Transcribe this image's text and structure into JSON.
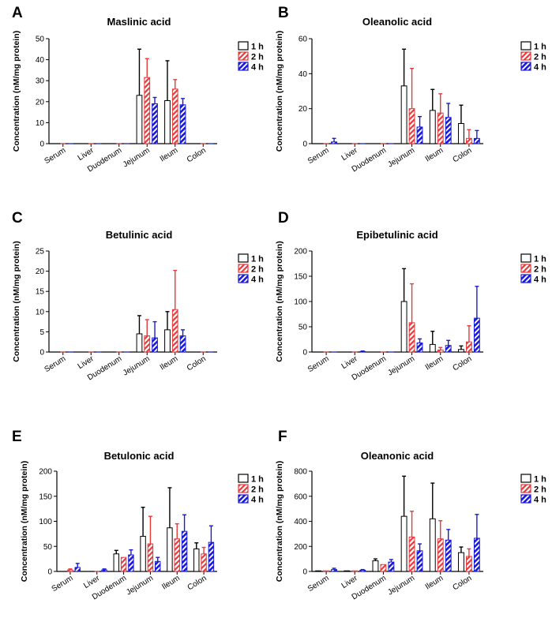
{
  "colors": {
    "h1": "#000000",
    "h2": "#e8393b",
    "h4": "#1a1ad6"
  },
  "legend": [
    "1 h",
    "2 h",
    "4 h"
  ],
  "ylabel": "Concentration (nM/mg protein)",
  "chart_data": [
    {
      "label": "A",
      "title": "Maslinic acid",
      "type": "bar",
      "categories": [
        "Serum",
        "Liver",
        "Duodenum",
        "Jejunum",
        "Ileum",
        "Colon"
      ],
      "yticks": [
        0,
        10,
        20,
        30,
        40,
        50
      ],
      "ylim": [
        0,
        50
      ],
      "series": [
        {
          "name": "1 h",
          "values": [
            0,
            0,
            0,
            23,
            20.5,
            0
          ],
          "errors": [
            0,
            0,
            0,
            22,
            19,
            0
          ]
        },
        {
          "name": "2 h",
          "values": [
            0,
            0,
            0,
            31.5,
            26,
            0
          ],
          "errors": [
            0,
            0,
            0,
            9,
            4.5,
            0
          ]
        },
        {
          "name": "4 h",
          "values": [
            0,
            0,
            0,
            19,
            18.5,
            0
          ],
          "errors": [
            0,
            0,
            0,
            3,
            3,
            0
          ]
        }
      ]
    },
    {
      "label": "B",
      "title": "Oleanolic acid",
      "type": "bar",
      "categories": [
        "Serum",
        "Liver",
        "Duodenum",
        "Jejunum",
        "Ileum",
        "Colon"
      ],
      "yticks": [
        0,
        20,
        40,
        60
      ],
      "ylim": [
        0,
        60
      ],
      "series": [
        {
          "name": "1 h",
          "values": [
            0,
            0,
            0,
            33,
            19,
            11.5
          ],
          "errors": [
            0,
            0,
            0,
            21,
            12,
            10.5
          ]
        },
        {
          "name": "2 h",
          "values": [
            0,
            0,
            0,
            20,
            17.5,
            3
          ],
          "errors": [
            0,
            0,
            0,
            23,
            11,
            5
          ]
        },
        {
          "name": "4 h",
          "values": [
            1,
            0,
            0,
            9.5,
            15,
            3
          ],
          "errors": [
            2,
            0,
            0,
            6,
            8,
            4.5
          ]
        }
      ]
    },
    {
      "label": "C",
      "title": "Betulinic acid",
      "type": "bar",
      "categories": [
        "Serum",
        "Liver",
        "Duodenum",
        "Jejunum",
        "Ileum",
        "Colon"
      ],
      "yticks": [
        0,
        5,
        10,
        15,
        20,
        25
      ],
      "ylim": [
        0,
        25
      ],
      "series": [
        {
          "name": "1 h",
          "values": [
            0,
            0,
            0,
            4.5,
            5.5,
            0
          ],
          "errors": [
            0,
            0,
            0,
            4.5,
            4.5,
            0
          ]
        },
        {
          "name": "2 h",
          "values": [
            0,
            0,
            0,
            4,
            10.5,
            0
          ],
          "errors": [
            0,
            0,
            0,
            4,
            9.7,
            0
          ]
        },
        {
          "name": "4 h",
          "values": [
            0,
            0,
            0,
            3.5,
            4,
            0
          ],
          "errors": [
            0,
            0,
            0,
            4,
            1.5,
            0
          ]
        }
      ]
    },
    {
      "label": "D",
      "title": "Epibetulinic acid",
      "type": "bar",
      "categories": [
        "Serum",
        "Liver",
        "Duodenum",
        "Jejunum",
        "Ileum",
        "Colon"
      ],
      "yticks": [
        0,
        50,
        100,
        150,
        200
      ],
      "ylim": [
        0,
        200
      ],
      "series": [
        {
          "name": "1 h",
          "values": [
            0,
            0,
            0,
            100,
            15,
            5
          ],
          "errors": [
            0,
            0,
            0,
            65,
            26,
            7
          ]
        },
        {
          "name": "2 h",
          "values": [
            0,
            0,
            0,
            58,
            4,
            20
          ],
          "errors": [
            0,
            0,
            0,
            77,
            5,
            32
          ]
        },
        {
          "name": "4 h",
          "values": [
            0,
            1,
            0,
            18,
            13,
            67
          ],
          "errors": [
            0,
            1,
            0,
            8,
            10,
            63
          ]
        }
      ]
    },
    {
      "label": "E",
      "title": "Betulonic acid",
      "type": "bar",
      "categories": [
        "Serum",
        "Liver",
        "Duodenum",
        "Jejunum",
        "Ileum",
        "Colon"
      ],
      "yticks": [
        0,
        50,
        100,
        150,
        200
      ],
      "ylim": [
        0,
        200
      ],
      "series": [
        {
          "name": "1 h",
          "values": [
            0,
            0,
            35,
            70,
            87,
            45
          ],
          "errors": [
            0,
            0,
            7,
            58,
            80,
            12
          ]
        },
        {
          "name": "2 h",
          "values": [
            3,
            0,
            28,
            55,
            65,
            35
          ],
          "errors": [
            2,
            0,
            0,
            55,
            30,
            13
          ]
        },
        {
          "name": "4 h",
          "values": [
            8,
            3,
            33,
            20,
            80,
            58
          ],
          "errors": [
            8,
            2,
            10,
            8,
            33,
            33
          ]
        }
      ]
    },
    {
      "label": "F",
      "title": "Oleanonic acid",
      "type": "bar",
      "categories": [
        "Serum",
        "Liver",
        "Duodenum",
        "Jejunum",
        "Ileum",
        "Colon"
      ],
      "yticks": [
        0,
        200,
        400,
        600,
        800
      ],
      "ylim": [
        0,
        800
      ],
      "series": [
        {
          "name": "1 h",
          "values": [
            5,
            5,
            85,
            440,
            420,
            150
          ],
          "errors": [
            0,
            0,
            15,
            320,
            285,
            45
          ]
        },
        {
          "name": "2 h",
          "values": [
            5,
            5,
            55,
            275,
            260,
            120
          ],
          "errors": [
            0,
            0,
            0,
            205,
            145,
            60
          ]
        },
        {
          "name": "4 h",
          "values": [
            15,
            10,
            75,
            165,
            250,
            265
          ],
          "errors": [
            10,
            5,
            20,
            55,
            85,
            190
          ]
        }
      ]
    }
  ]
}
